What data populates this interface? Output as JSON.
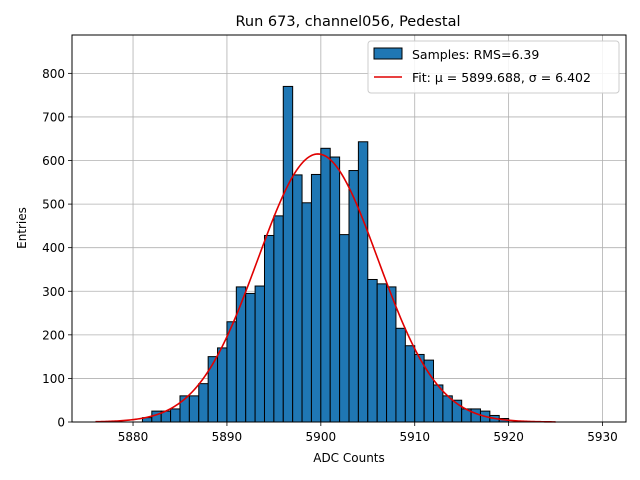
{
  "chart_data": {
    "type": "bar",
    "title": "Run 673, channel056, Pedestal",
    "xlabel": "ADC Counts",
    "ylabel": "Entries",
    "xlim": [
      5873.5,
      5932.5
    ],
    "ylim": [
      0,
      888
    ],
    "x_ticks": [
      5880,
      5890,
      5900,
      5910,
      5920,
      5930
    ],
    "y_ticks": [
      0,
      100,
      200,
      300,
      400,
      500,
      600,
      700,
      800
    ],
    "grid": true,
    "legend_position": "top-right",
    "bar_color": "#1f77b4",
    "fit_color": "#e00000",
    "histogram": {
      "name": "Samples: RMS=6.39",
      "bins": [
        {
          "x0": 5881,
          "x1": 5882,
          "value": 10
        },
        {
          "x0": 5882,
          "x1": 5883,
          "value": 25
        },
        {
          "x0": 5883,
          "x1": 5884,
          "value": 25
        },
        {
          "x0": 5884,
          "x1": 5885,
          "value": 30
        },
        {
          "x0": 5885,
          "x1": 5886,
          "value": 60
        },
        {
          "x0": 5886,
          "x1": 5887,
          "value": 60
        },
        {
          "x0": 5887,
          "x1": 5888,
          "value": 88
        },
        {
          "x0": 5888,
          "x1": 5889,
          "value": 150
        },
        {
          "x0": 5889,
          "x1": 5890,
          "value": 170
        },
        {
          "x0": 5890,
          "x1": 5891,
          "value": 230
        },
        {
          "x0": 5891,
          "x1": 5892,
          "value": 310
        },
        {
          "x0": 5892,
          "x1": 5893,
          "value": 295
        },
        {
          "x0": 5893,
          "x1": 5894,
          "value": 312
        },
        {
          "x0": 5894,
          "x1": 5895,
          "value": 428
        },
        {
          "x0": 5895,
          "x1": 5896,
          "value": 473
        },
        {
          "x0": 5896,
          "x1": 5897,
          "value": 770
        },
        {
          "x0": 5897,
          "x1": 5898,
          "value": 567
        },
        {
          "x0": 5898,
          "x1": 5899,
          "value": 503
        },
        {
          "x0": 5899,
          "x1": 5900,
          "value": 568
        },
        {
          "x0": 5900,
          "x1": 5901,
          "value": 628
        },
        {
          "x0": 5901,
          "x1": 5902,
          "value": 608
        },
        {
          "x0": 5902,
          "x1": 5903,
          "value": 430
        },
        {
          "x0": 5903,
          "x1": 5904,
          "value": 577
        },
        {
          "x0": 5904,
          "x1": 5905,
          "value": 643
        },
        {
          "x0": 5905,
          "x1": 5906,
          "value": 327
        },
        {
          "x0": 5906,
          "x1": 5907,
          "value": 317
        },
        {
          "x0": 5907,
          "x1": 5908,
          "value": 310
        },
        {
          "x0": 5908,
          "x1": 5909,
          "value": 215
        },
        {
          "x0": 5909,
          "x1": 5910,
          "value": 175
        },
        {
          "x0": 5910,
          "x1": 5911,
          "value": 155
        },
        {
          "x0": 5911,
          "x1": 5912,
          "value": 142
        },
        {
          "x0": 5912,
          "x1": 5913,
          "value": 85
        },
        {
          "x0": 5913,
          "x1": 5914,
          "value": 60
        },
        {
          "x0": 5914,
          "x1": 5915,
          "value": 50
        },
        {
          "x0": 5915,
          "x1": 5916,
          "value": 30
        },
        {
          "x0": 5916,
          "x1": 5917,
          "value": 30
        },
        {
          "x0": 5917,
          "x1": 5918,
          "value": 25
        },
        {
          "x0": 5918,
          "x1": 5919,
          "value": 15
        },
        {
          "x0": 5919,
          "x1": 5920,
          "value": 8
        }
      ]
    },
    "fit": {
      "name": "Fit: μ = 5899.688, σ = 6.402",
      "type": "gaussian",
      "mu": 5899.688,
      "sigma": 6.402,
      "amplitude": 615,
      "x_range": [
        5876,
        5925
      ]
    }
  }
}
